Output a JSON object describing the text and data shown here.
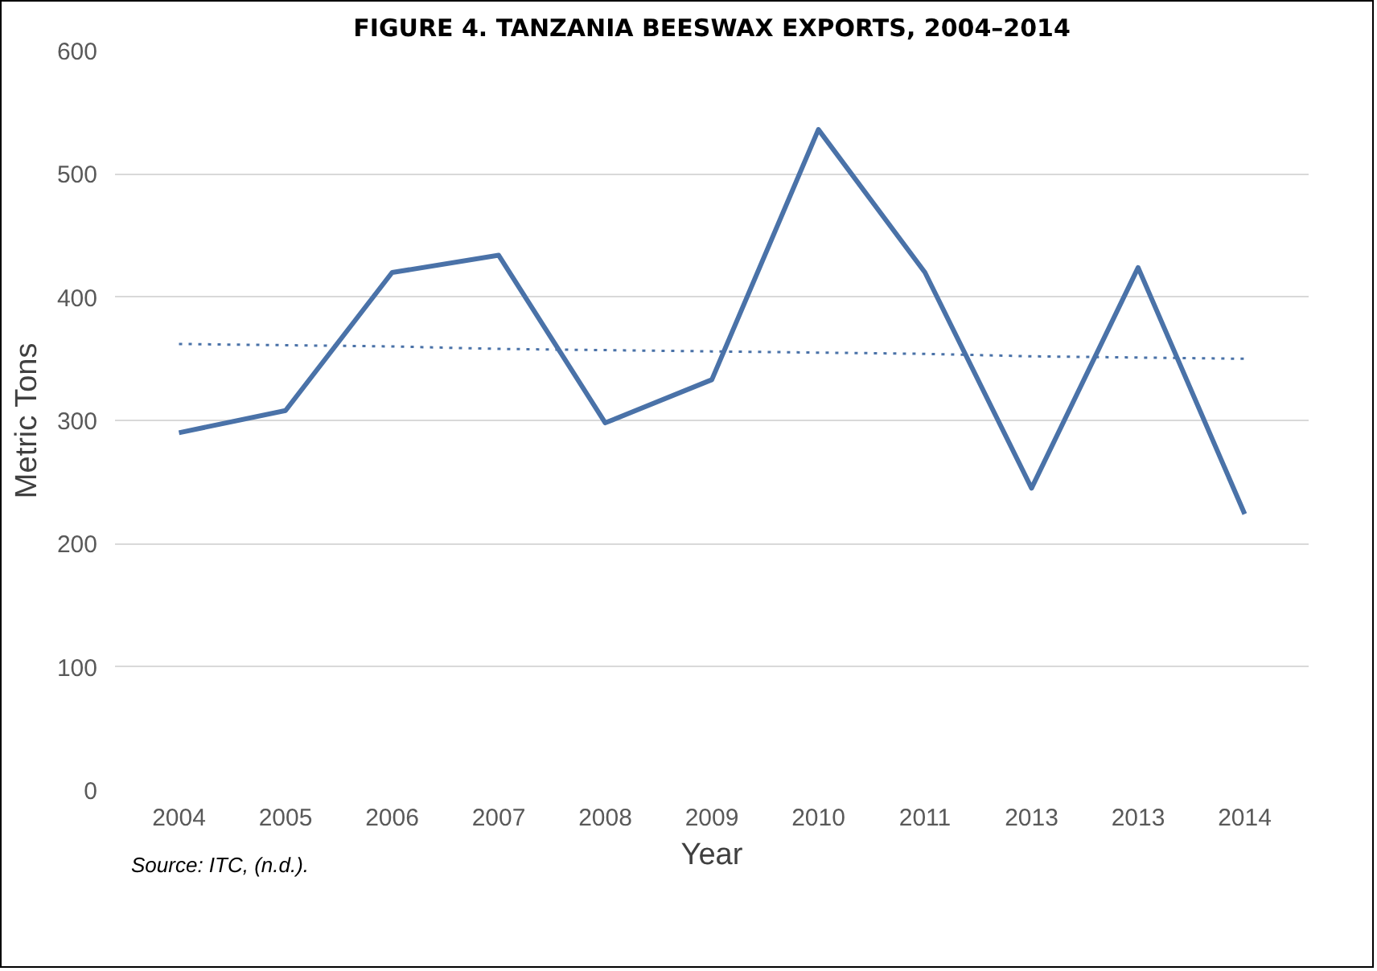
{
  "chart_data": {
    "type": "line",
    "title": "FIGURE 4. TANZANIA BEESWAX EXPORTS, 2004–2014",
    "xlabel": "Year",
    "ylabel": "Metric Tons",
    "categories": [
      "2004",
      "2005",
      "2006",
      "2007",
      "2008",
      "2009",
      "2010",
      "2011",
      "2013",
      "2013",
      "2014"
    ],
    "series": [
      {
        "color": "#4a72a8",
        "line_style": "solid",
        "values": [
          290,
          308,
          420,
          434,
          298,
          333,
          536,
          420,
          245,
          424,
          224
        ]
      },
      {
        "color": "#4a72a8",
        "line_style": "dotted",
        "values": [
          362,
          361,
          360,
          358,
          357,
          356,
          355,
          354,
          352,
          351,
          350
        ]
      }
    ],
    "ylim": [
      0,
      600
    ],
    "yticks": [
      0,
      100,
      200,
      300,
      400,
      500,
      600
    ],
    "grid": "y",
    "marker": "none",
    "annotations": [
      "Source: ITC, (n.d.)."
    ]
  }
}
